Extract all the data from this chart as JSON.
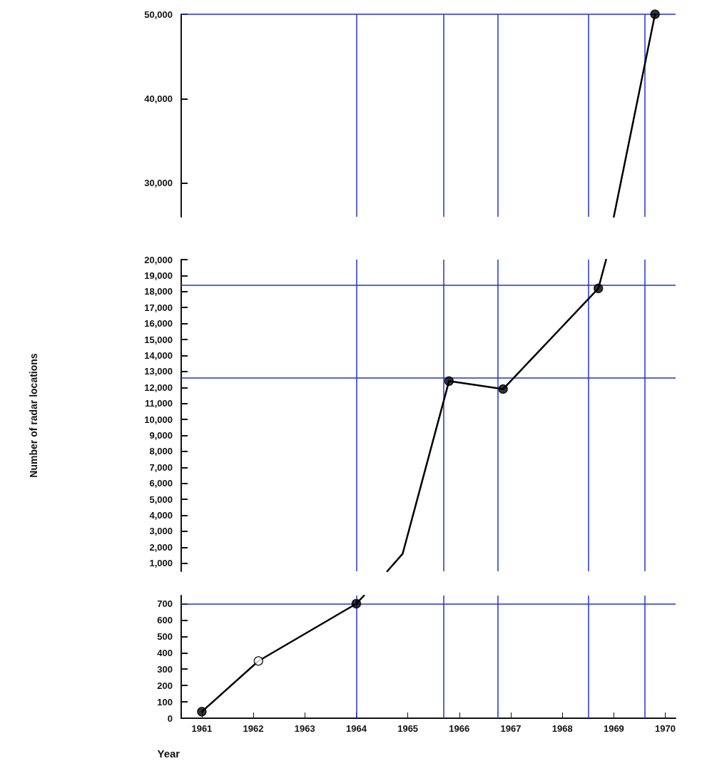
{
  "chart_data": [
    {
      "type": "line",
      "xlim": [
        1960.6,
        1970.2
      ],
      "xticks": [
        1961,
        1962,
        1963,
        1964,
        1965,
        1966,
        1967,
        1968,
        1969,
        1970
      ],
      "ylim": [
        26000,
        50000
      ],
      "yticks": [
        {
          "value": 30000,
          "label": "30,000"
        },
        {
          "value": 40000,
          "label": "40,000"
        },
        {
          "value": 50000,
          "label": "50,000"
        }
      ],
      "tick_labels": "y",
      "grid": false,
      "series": [
        {
          "color": "#000000",
          "marker": "none",
          "line_style": "solid",
          "x": [
            1969.0,
            1969.8
          ],
          "values": [
            26000,
            50000
          ]
        },
        {
          "type": "scatter",
          "color": "#000000",
          "marker": "circle",
          "x": [
            1969.8
          ],
          "values": [
            50000
          ]
        }
      ],
      "ref_lines": [
        {
          "axis": "y",
          "value": 50000,
          "color": "#2233cc"
        },
        {
          "axis": "x",
          "value": 1964,
          "color": "#2233cc"
        },
        {
          "axis": "x",
          "value": 1965.7,
          "color": "#2233cc"
        },
        {
          "axis": "x",
          "value": 1966.75,
          "color": "#2233cc"
        },
        {
          "axis": "x",
          "value": 1968.5,
          "color": "#2233cc"
        },
        {
          "axis": "x",
          "value": 1969.6,
          "color": "#2233cc"
        }
      ]
    },
    {
      "type": "line",
      "xlim": [
        1960.6,
        1970.2
      ],
      "xticks": [
        1961,
        1962,
        1963,
        1964,
        1965,
        1966,
        1967,
        1968,
        1969,
        1970
      ],
      "ylim": [
        500,
        20000
      ],
      "yticks": [
        {
          "value": 1000,
          "label": "1,000"
        },
        {
          "value": 2000,
          "label": "2,000"
        },
        {
          "value": 3000,
          "label": "3,000"
        },
        {
          "value": 4000,
          "label": "4,000"
        },
        {
          "value": 5000,
          "label": "5,000"
        },
        {
          "value": 6000,
          "label": "6,000"
        },
        {
          "value": 7000,
          "label": "7,000"
        },
        {
          "value": 8000,
          "label": "8,000"
        },
        {
          "value": 9000,
          "label": "9,000"
        },
        {
          "value": 10000,
          "label": "10,000"
        },
        {
          "value": 11000,
          "label": "11,000"
        },
        {
          "value": 12000,
          "label": "12,000"
        },
        {
          "value": 13000,
          "label": "13,000"
        },
        {
          "value": 14000,
          "label": "14,000"
        },
        {
          "value": 15000,
          "label": "15,000"
        },
        {
          "value": 16000,
          "label": "16,000"
        },
        {
          "value": 17000,
          "label": "17,000"
        },
        {
          "value": 18000,
          "label": "18,000"
        },
        {
          "value": 19000,
          "label": "19,000"
        },
        {
          "value": 20000,
          "label": "20,000"
        }
      ],
      "ylabel": "Number of radar locations",
      "tick_labels": "y",
      "grid": false,
      "series": [
        {
          "color": "#000000",
          "marker": "none",
          "line_style": "solid",
          "x": [
            1964.6,
            1964.9,
            1965.8,
            1966.85,
            1968.7,
            1968.85
          ],
          "values": [
            500,
            1600,
            12400,
            11900,
            18200,
            20000
          ]
        },
        {
          "type": "scatter",
          "color": "#000000",
          "marker": "circle",
          "x": [
            1965.8,
            1966.85,
            1968.7
          ],
          "values": [
            12400,
            11900,
            18200
          ]
        }
      ],
      "ref_lines": [
        {
          "axis": "y",
          "value": 18400,
          "color": "#2233cc"
        },
        {
          "axis": "y",
          "value": 12600,
          "color": "#2233cc"
        },
        {
          "axis": "x",
          "value": 1964,
          "color": "#2233cc"
        },
        {
          "axis": "x",
          "value": 1965.7,
          "color": "#2233cc"
        },
        {
          "axis": "x",
          "value": 1966.75,
          "color": "#2233cc"
        },
        {
          "axis": "x",
          "value": 1968.5,
          "color": "#2233cc"
        },
        {
          "axis": "x",
          "value": 1969.6,
          "color": "#2233cc"
        }
      ]
    },
    {
      "type": "line",
      "xlim": [
        1960.6,
        1970.2
      ],
      "xticks": [
        1961,
        1962,
        1963,
        1964,
        1965,
        1966,
        1967,
        1968,
        1969,
        1970
      ],
      "ylim": [
        0,
        750
      ],
      "yticks": [
        0,
        100,
        200,
        300,
        400,
        500,
        600,
        700
      ],
      "xlabel": "Year",
      "grid": false,
      "series": [
        {
          "color": "#000000",
          "marker": "none",
          "line_style": "solid",
          "x": [
            1961,
            1962.1,
            1964,
            1964.15
          ],
          "values": [
            40,
            350,
            700,
            750
          ]
        },
        {
          "type": "scatter",
          "color": "#000000",
          "marker": "circle",
          "x": [
            1961,
            1964
          ],
          "values": [
            40,
            700
          ]
        },
        {
          "type": "scatter",
          "color": "#ffffff",
          "marker": "circle",
          "x": [
            1962.1
          ],
          "values": [
            350
          ]
        }
      ],
      "ref_lines": [
        {
          "axis": "y",
          "value": 700,
          "color": "#2233cc"
        },
        {
          "axis": "x",
          "value": 1964,
          "color": "#2233cc"
        },
        {
          "axis": "x",
          "value": 1965.7,
          "color": "#2233cc"
        },
        {
          "axis": "x",
          "value": 1966.75,
          "color": "#2233cc"
        },
        {
          "axis": "x",
          "value": 1968.5,
          "color": "#2233cc"
        },
        {
          "axis": "x",
          "value": 1969.6,
          "color": "#2233cc"
        }
      ]
    }
  ]
}
